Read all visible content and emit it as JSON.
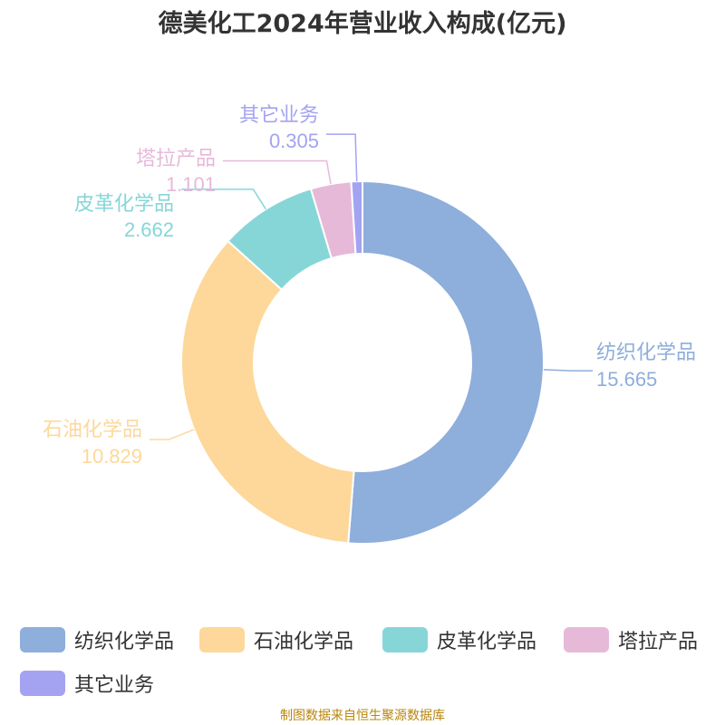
{
  "title": "德美化工2024年营业收入构成(亿元)",
  "source": "制图数据来自恒生聚源数据库",
  "chart_data": {
    "type": "pie",
    "donut": true,
    "title": "德美化工2024年营业收入构成(亿元)",
    "unit": "亿元",
    "legend_position": "bottom",
    "series": [
      {
        "name": "纺织化学品",
        "value": 15.665,
        "value_label": "15.665",
        "color": "#8eaedb"
      },
      {
        "name": "石油化学品",
        "value": 10.829,
        "value_label": "10.829",
        "color": "#fdd89a"
      },
      {
        "name": "皮革化学品",
        "value": 2.662,
        "value_label": "2.662",
        "color": "#86d6d8"
      },
      {
        "name": "塔拉产品",
        "value": 1.101,
        "value_label": "1.101",
        "color": "#e6b9d9"
      },
      {
        "name": "其它业务",
        "value": 0.305,
        "value_label": "0.305",
        "color": "#a3a3f2"
      }
    ]
  }
}
